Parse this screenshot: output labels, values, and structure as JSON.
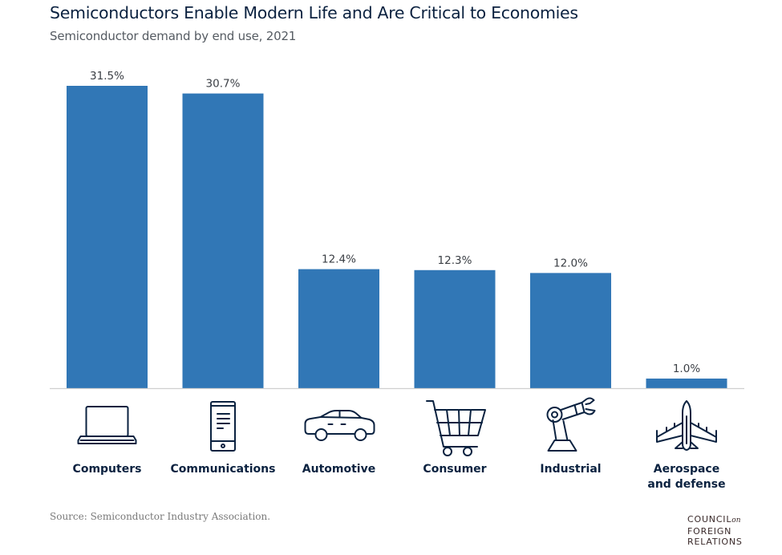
{
  "header": {
    "title": "Semiconductors Enable Modern Life and Are Critical to Economies",
    "subtitle": "Semiconductor demand by end use, 2021"
  },
  "chart_data": {
    "type": "bar",
    "title": "Semiconductors Enable Modern Life and Are Critical to Economies",
    "subtitle": "Semiconductor demand by end use, 2021",
    "xlabel": "",
    "ylabel": "",
    "ylim": [
      0,
      31.5
    ],
    "grid": false,
    "unit": "%",
    "categories": [
      "Computers",
      "Communications",
      "Automotive",
      "Consumer",
      "Industrial",
      "Aerospace and defense"
    ],
    "category_lines": [
      [
        "Computers"
      ],
      [
        "Communications"
      ],
      [
        "Automotive"
      ],
      [
        "Consumer"
      ],
      [
        "Industrial"
      ],
      [
        "Aerospace",
        "and defense"
      ]
    ],
    "icons": [
      "laptop-icon",
      "smartphone-icon",
      "car-icon",
      "shopping-cart-icon",
      "robot-arm-icon",
      "fighter-jet-icon"
    ],
    "values": [
      31.5,
      30.7,
      12.4,
      12.3,
      12.0,
      1.0
    ],
    "data_labels": [
      "31.5%",
      "30.7%",
      "12.4%",
      "12.3%",
      "12.0%",
      "1.0%"
    ],
    "bar_color": "#3177b6"
  },
  "footer": {
    "source": "Source:  Semiconductor Industry Association.",
    "logo_line1": "COUNCIL",
    "logo_on": "on",
    "logo_line2": "FOREIGN",
    "logo_line3": "RELATIONS"
  }
}
